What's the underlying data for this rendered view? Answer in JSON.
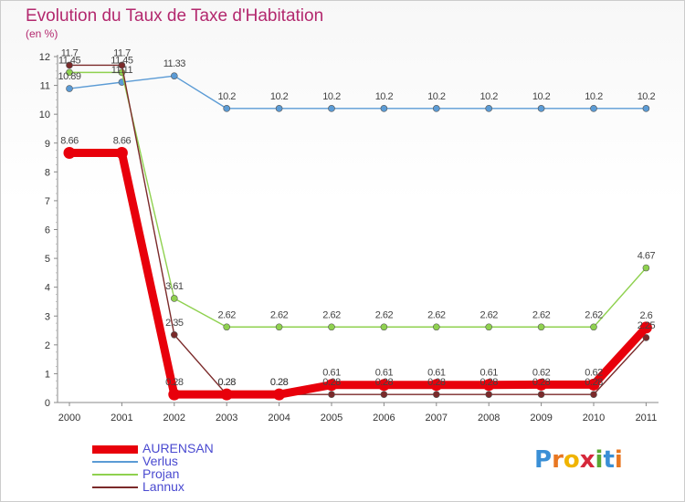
{
  "header": {
    "title": "Evolution du Taux de Taxe d'Habitation",
    "subtitle": "(en %)"
  },
  "brand": {
    "letters": [
      "P",
      "r",
      "o",
      "x",
      "i",
      "t",
      "i"
    ],
    "colors": [
      "#3a8fd6",
      "#e87722",
      "#f0b400",
      "#d6283b",
      "#5aa832",
      "#3a8fd6",
      "#e87722"
    ]
  },
  "chart_data": {
    "type": "line",
    "title": "Evolution du Taux de Taxe d'Habitation",
    "ylabel": "(en %)",
    "xlabel": "",
    "x": [
      "2000",
      "2001",
      "2002",
      "2003",
      "2004",
      "2005",
      "2006",
      "2007",
      "2008",
      "2009",
      "2010",
      "2011"
    ],
    "ylim": [
      0,
      12
    ],
    "yticks": [
      "0",
      "1",
      "2",
      "3",
      "4",
      "5",
      "6",
      "7",
      "8",
      "9",
      "10",
      "11",
      "12"
    ],
    "grid": false,
    "legend_position": "bottom-left",
    "series": [
      {
        "name": "AURENSAN",
        "color": "#e8000b",
        "values": [
          8.66,
          8.66,
          0.28,
          0.28,
          0.28,
          0.61,
          0.61,
          0.61,
          0.61,
          0.62,
          0.62,
          2.6
        ],
        "labels": [
          "8.66",
          "8.66",
          "0.28",
          "0.28",
          "0.28",
          "0.61",
          "0.61",
          "0.61",
          "0.61",
          "0.62",
          "0.62",
          "2.6"
        ]
      },
      {
        "name": "Verlus",
        "color": "#5b9bd5",
        "values": [
          10.89,
          11.11,
          11.33,
          10.2,
          10.2,
          10.2,
          10.2,
          10.2,
          10.2,
          10.2,
          10.2,
          10.2
        ],
        "labels": [
          "10.89",
          "11.11",
          "11.33",
          "10.2",
          "10.2",
          "10.2",
          "10.2",
          "10.2",
          "10.2",
          "10.2",
          "10.2",
          "10.2"
        ]
      },
      {
        "name": "Projan",
        "color": "#8fd14f",
        "values": [
          11.45,
          11.45,
          3.61,
          2.62,
          2.62,
          2.62,
          2.62,
          2.62,
          2.62,
          2.62,
          2.62,
          4.67
        ],
        "labels": [
          "11.45",
          "11.45",
          "3.61",
          "2.62",
          "2.62",
          "2.62",
          "2.62",
          "2.62",
          "2.62",
          "2.62",
          "2.62",
          "4.67"
        ]
      },
      {
        "name": "Lannux",
        "color": "#7b2a2a",
        "values": [
          11.7,
          11.7,
          2.35,
          0.28,
          0.28,
          0.28,
          0.28,
          0.28,
          0.28,
          0.28,
          0.28,
          2.25
        ],
        "labels": [
          "11.7",
          "11.7",
          "2.35",
          "0.28",
          "0.28",
          "0.28",
          "0.28",
          "0.28",
          "0.28",
          "0.28",
          "0.28",
          "2.25"
        ]
      }
    ]
  }
}
